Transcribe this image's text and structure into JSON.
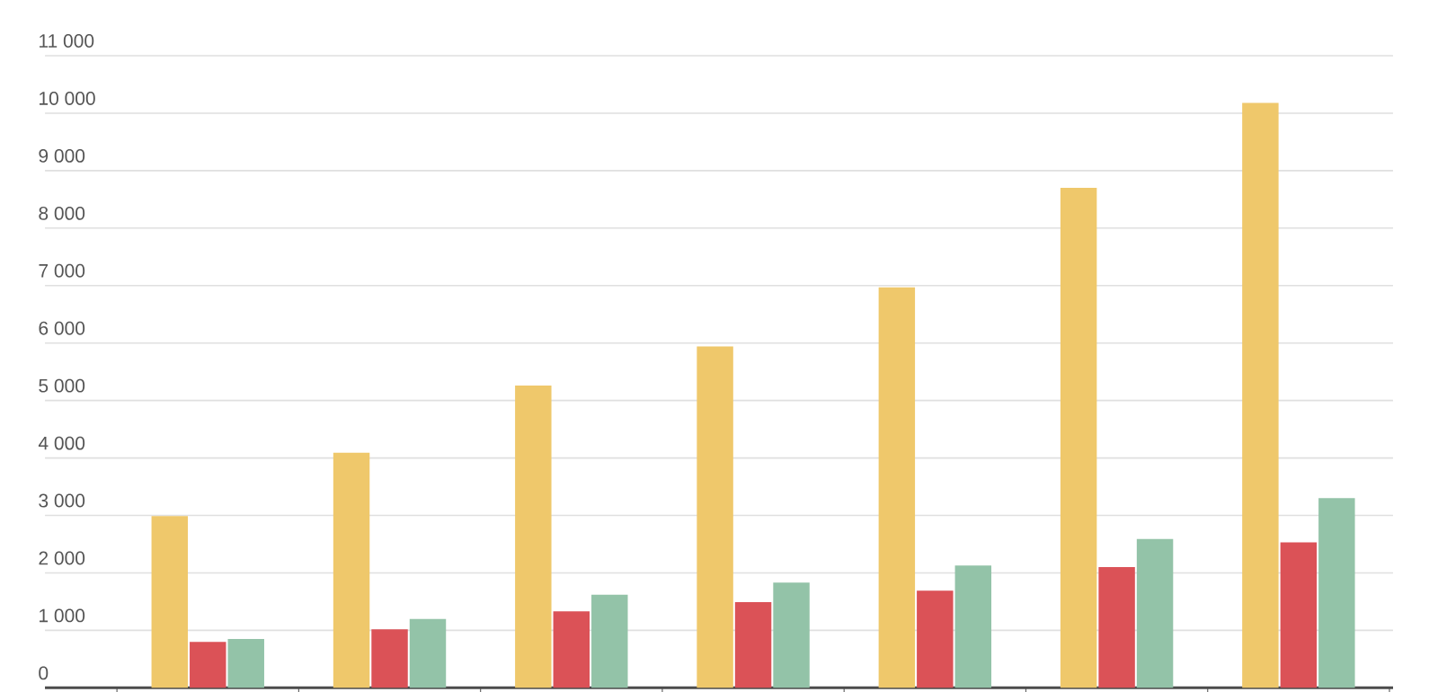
{
  "chart_data": {
    "type": "bar",
    "categories": [
      null,
      null,
      null,
      null,
      null,
      null,
      null
    ],
    "series": [
      {
        "color": "#efc86b",
        "values": [
          2990,
          4090,
          5260,
          5940,
          6970,
          8700,
          10180
        ]
      },
      {
        "color": "#db5257",
        "values": [
          800,
          1020,
          1330,
          1490,
          1690,
          2100,
          2530
        ]
      },
      {
        "color": "#93c3a8",
        "values": [
          850,
          1200,
          1620,
          1830,
          2130,
          2590,
          3300
        ]
      }
    ],
    "ylim": [
      0,
      11000
    ],
    "yticks": [
      {
        "value": 0,
        "label": "0"
      },
      {
        "value": 1000,
        "label": "1 000"
      },
      {
        "value": 2000,
        "label": "2 000"
      },
      {
        "value": 3000,
        "label": "3 000"
      },
      {
        "value": 4000,
        "label": "4 000"
      },
      {
        "value": 5000,
        "label": "5 000"
      },
      {
        "value": 6000,
        "label": "6 000"
      },
      {
        "value": 7000,
        "label": "7 000"
      },
      {
        "value": 8000,
        "label": "8 000"
      },
      {
        "value": 9000,
        "label": "9 000"
      },
      {
        "value": 10000,
        "label": "10 000"
      },
      {
        "value": 11000,
        "label": "11 000"
      }
    ],
    "grid": "y"
  }
}
